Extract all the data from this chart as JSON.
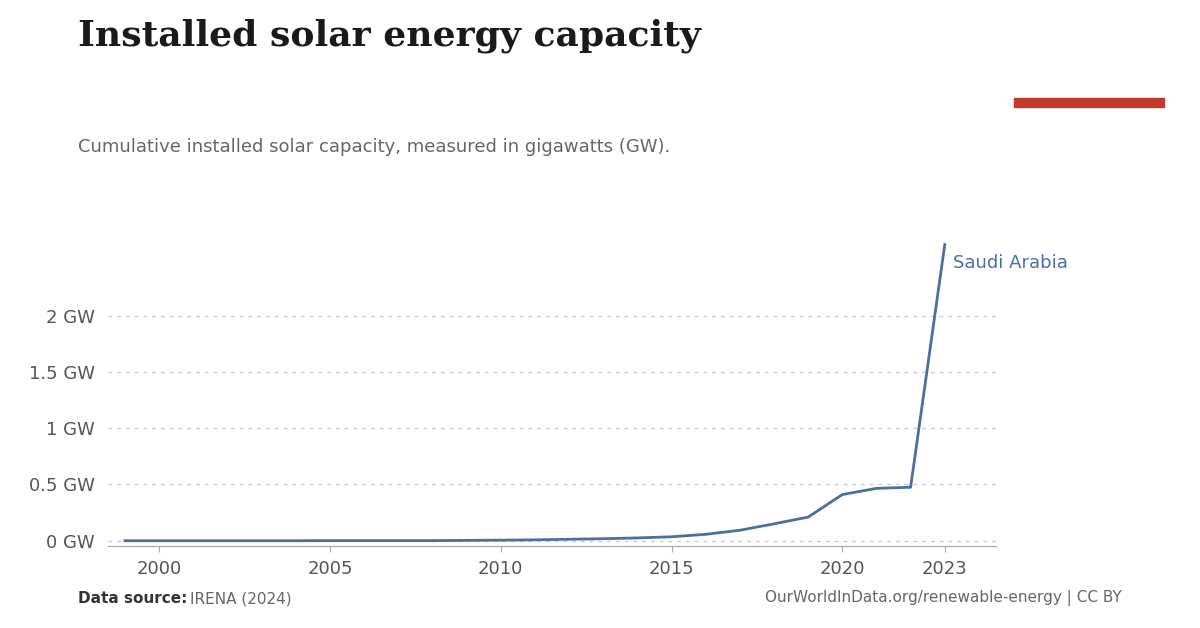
{
  "title": "Installed solar energy capacity",
  "subtitle": "Cumulative installed solar capacity, measured in gigawatts (GW).",
  "datasource_label": "Data source:",
  "datasource": "IRENA (2024)",
  "url": "OurWorldInData.org/renewable-energy | CC BY",
  "country_label": "Saudi Arabia",
  "line_color": "#4c6ea3",
  "background_color": "#ffffff",
  "years": [
    1999,
    2000,
    2001,
    2002,
    2003,
    2004,
    2005,
    2006,
    2007,
    2008,
    2009,
    2010,
    2011,
    2012,
    2013,
    2014,
    2015,
    2016,
    2017,
    2018,
    2019,
    2020,
    2021,
    2022,
    2023
  ],
  "values": [
    0.0,
    0.0,
    0.0,
    0.0,
    0.0,
    0.0,
    0.001,
    0.001,
    0.001,
    0.001,
    0.003,
    0.005,
    0.008,
    0.013,
    0.018,
    0.025,
    0.035,
    0.057,
    0.093,
    0.15,
    0.21,
    0.41,
    0.465,
    0.475,
    2.63
  ],
  "yticks": [
    0,
    0.5,
    1.0,
    1.5,
    2.0
  ],
  "ytick_labels": [
    "0 GW",
    "0.5 GW",
    "1 GW",
    "1.5 GW",
    "2 GW"
  ],
  "ylim": [
    -0.05,
    2.85
  ],
  "xticks": [
    2000,
    2005,
    2010,
    2015,
    2020,
    2023
  ],
  "xlim": [
    1998.5,
    2024.5
  ],
  "grid_color": "#c8c8c8",
  "title_fontsize": 26,
  "subtitle_fontsize": 13,
  "tick_fontsize": 13,
  "label_color": "#555555",
  "owid_box_color": "#1a3560",
  "owid_red": "#c0392b",
  "owid_text_color": "#ffffff",
  "datasource_color": "#666666",
  "title_color": "#1a1a1a",
  "subtitle_color": "#666666"
}
